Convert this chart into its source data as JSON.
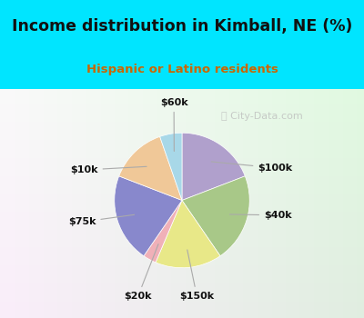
{
  "title": "Income distribution in Kimball, NE (%)",
  "subtitle": "Hispanic or Latino residents",
  "labels": [
    "$100k",
    "$40k",
    "$150k",
    "$20k",
    "$75k",
    "$10k",
    "$60k"
  ],
  "values": [
    18,
    20,
    15,
    3,
    20,
    13,
    5
  ],
  "colors": [
    "#b0a0cc",
    "#a8c888",
    "#e8e888",
    "#f0b0b8",
    "#8888cc",
    "#f0c898",
    "#a8d8e8"
  ],
  "title_color": "#111111",
  "subtitle_color": "#cc6600",
  "watermark": "City-Data.com",
  "startangle": 90
}
